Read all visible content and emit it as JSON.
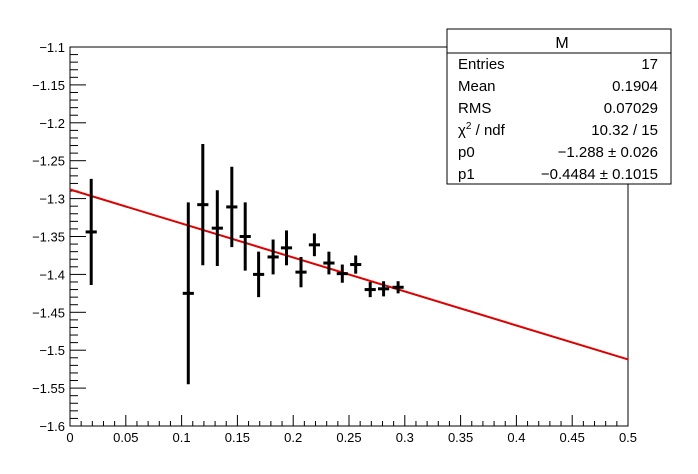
{
  "chart_data": {
    "type": "scatter",
    "title": "",
    "xlabel": "",
    "ylabel": "",
    "xlim": [
      0,
      0.5
    ],
    "ylim": [
      -1.6,
      -1.1
    ],
    "grid": false,
    "x_ticks": [
      "0",
      "0.05",
      "0.1",
      "0.15",
      "0.2",
      "0.25",
      "0.3",
      "0.35",
      "0.4",
      "0.45",
      "0.5"
    ],
    "y_ticks": [
      "-1.1",
      "-1.15",
      "-1.2",
      "-1.25",
      "-1.3",
      "-1.35",
      "-1.4",
      "-1.45",
      "-1.5",
      "-1.55",
      "-1.6"
    ],
    "points": [
      {
        "x": 0.019,
        "y": -1.344,
        "xerr": 0.005,
        "yerr": 0.07
      },
      {
        "x": 0.106,
        "y": -1.425,
        "xerr": 0.005,
        "yerr": 0.12
      },
      {
        "x": 0.119,
        "y": -1.308,
        "xerr": 0.005,
        "yerr": 0.08
      },
      {
        "x": 0.132,
        "y": -1.339,
        "xerr": 0.005,
        "yerr": 0.05
      },
      {
        "x": 0.145,
        "y": -1.311,
        "xerr": 0.005,
        "yerr": 0.053
      },
      {
        "x": 0.157,
        "y": -1.35,
        "xerr": 0.005,
        "yerr": 0.045
      },
      {
        "x": 0.169,
        "y": -1.4,
        "xerr": 0.005,
        "yerr": 0.03
      },
      {
        "x": 0.182,
        "y": -1.377,
        "xerr": 0.005,
        "yerr": 0.023
      },
      {
        "x": 0.194,
        "y": -1.365,
        "xerr": 0.005,
        "yerr": 0.023
      },
      {
        "x": 0.207,
        "y": -1.397,
        "xerr": 0.005,
        "yerr": 0.02
      },
      {
        "x": 0.219,
        "y": -1.361,
        "xerr": 0.005,
        "yerr": 0.015
      },
      {
        "x": 0.232,
        "y": -1.385,
        "xerr": 0.005,
        "yerr": 0.015
      },
      {
        "x": 0.244,
        "y": -1.399,
        "xerr": 0.005,
        "yerr": 0.012
      },
      {
        "x": 0.256,
        "y": -1.387,
        "xerr": 0.005,
        "yerr": 0.012
      },
      {
        "x": 0.269,
        "y": -1.42,
        "xerr": 0.005,
        "yerr": 0.01
      },
      {
        "x": 0.281,
        "y": -1.419,
        "xerr": 0.005,
        "yerr": 0.01
      },
      {
        "x": 0.294,
        "y": -1.417,
        "xerr": 0.005,
        "yerr": 0.008
      }
    ],
    "fit": {
      "p0": -1.288,
      "p1": -0.4484,
      "x_range": [
        0,
        0.5
      ],
      "color": "#e00000"
    },
    "marker_color": "#000000"
  },
  "stats_box": {
    "title": "M",
    "rows": [
      {
        "label": "Entries",
        "value": "17"
      },
      {
        "label": "Mean",
        "value": "0.1904"
      },
      {
        "label": "RMS",
        "value": "0.07029"
      },
      {
        "label_prefix": "χ",
        "label_sup": "2",
        "label_suffix": " / ndf",
        "value": "10.32 / 15"
      },
      {
        "label": "p0",
        "value": "−1.288 ± 0.026"
      },
      {
        "label": "p1",
        "value": "−0.4484 ± 0.1015"
      }
    ]
  }
}
